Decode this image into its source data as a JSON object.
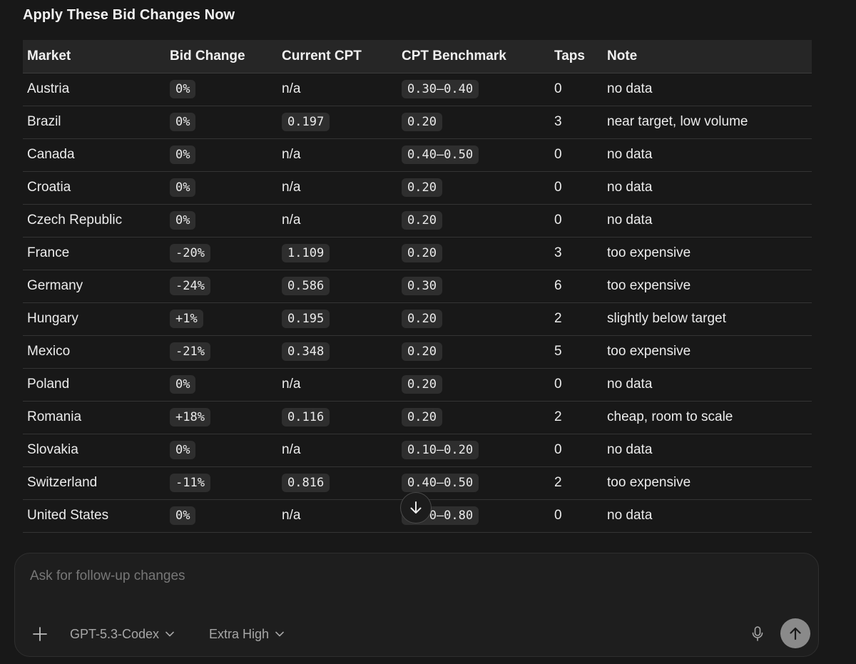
{
  "heading": "Apply These Bid Changes Now",
  "table": {
    "headers": {
      "market": "Market",
      "bid_change": "Bid Change",
      "current_cpt": "Current CPT",
      "cpt_benchmark": "CPT Benchmark",
      "taps": "Taps",
      "note": "Note"
    },
    "rows": [
      {
        "market": "Austria",
        "bid_change": "0%",
        "current_cpt": "n/a",
        "cpt_benchmark": "0.30–0.40",
        "taps": "0",
        "note": "no data"
      },
      {
        "market": "Brazil",
        "bid_change": "0%",
        "current_cpt": "0.197",
        "cpt_benchmark": "0.20",
        "taps": "3",
        "note": "near target, low volume"
      },
      {
        "market": "Canada",
        "bid_change": "0%",
        "current_cpt": "n/a",
        "cpt_benchmark": "0.40–0.50",
        "taps": "0",
        "note": "no data"
      },
      {
        "market": "Croatia",
        "bid_change": "0%",
        "current_cpt": "n/a",
        "cpt_benchmark": "0.20",
        "taps": "0",
        "note": "no data"
      },
      {
        "market": "Czech Republic",
        "bid_change": "0%",
        "current_cpt": "n/a",
        "cpt_benchmark": "0.20",
        "taps": "0",
        "note": "no data"
      },
      {
        "market": "France",
        "bid_change": "-20%",
        "current_cpt": "1.109",
        "cpt_benchmark": "0.20",
        "taps": "3",
        "note": "too expensive"
      },
      {
        "market": "Germany",
        "bid_change": "-24%",
        "current_cpt": "0.586",
        "cpt_benchmark": "0.30",
        "taps": "6",
        "note": "too expensive"
      },
      {
        "market": "Hungary",
        "bid_change": "+1%",
        "current_cpt": "0.195",
        "cpt_benchmark": "0.20",
        "taps": "2",
        "note": "slightly below target"
      },
      {
        "market": "Mexico",
        "bid_change": "-21%",
        "current_cpt": "0.348",
        "cpt_benchmark": "0.20",
        "taps": "5",
        "note": "too expensive"
      },
      {
        "market": "Poland",
        "bid_change": "0%",
        "current_cpt": "n/a",
        "cpt_benchmark": "0.20",
        "taps": "0",
        "note": "no data"
      },
      {
        "market": "Romania",
        "bid_change": "+18%",
        "current_cpt": "0.116",
        "cpt_benchmark": "0.20",
        "taps": "2",
        "note": "cheap, room to scale"
      },
      {
        "market": "Slovakia",
        "bid_change": "0%",
        "current_cpt": "n/a",
        "cpt_benchmark": "0.10–0.20",
        "taps": "0",
        "note": "no data"
      },
      {
        "market": "Switzerland",
        "bid_change": "-11%",
        "current_cpt": "0.816",
        "cpt_benchmark": "0.40–0.50",
        "taps": "2",
        "note": "too expensive"
      },
      {
        "market": "United States",
        "bid_change": "0%",
        "current_cpt": "n/a",
        "cpt_benchmark": "0.70–0.80",
        "taps": "0",
        "note": "no data"
      }
    ]
  },
  "composer": {
    "placeholder": "Ask for follow-up changes",
    "model_label": "GPT-5.3-Codex",
    "effort_label": "Extra High"
  },
  "icons": {
    "scroll_down": "arrow-down-icon",
    "add": "plus-icon",
    "model_dropdown": "chevron-down-icon",
    "effort_dropdown": "chevron-down-icon",
    "mic": "microphone-icon",
    "send": "arrow-up-icon"
  }
}
